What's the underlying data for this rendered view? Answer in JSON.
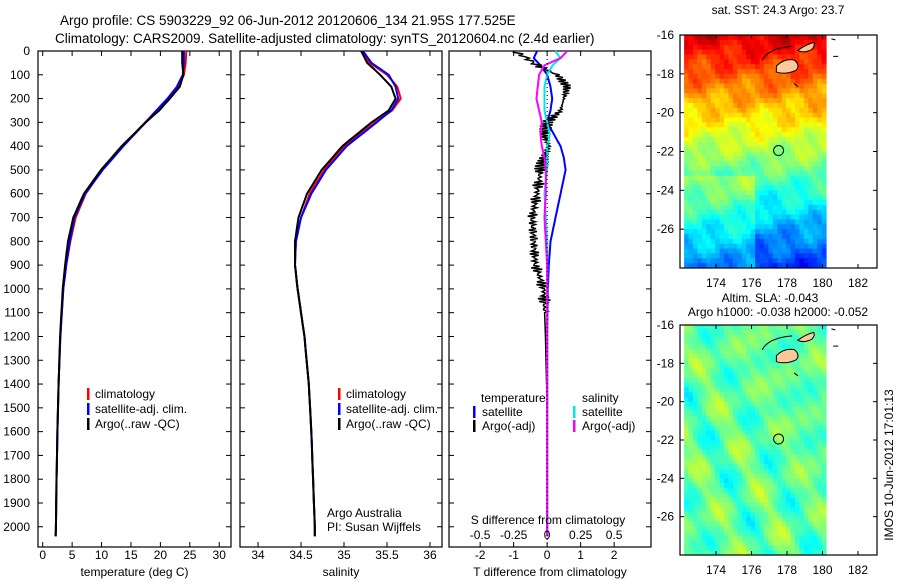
{
  "header": {
    "title_line1": "Argo profile: CS 5903229_92 06-Jun-2012 20120606_134 21.95S 177.525E",
    "title_line2": "Climatology: CARS2009. Satellite-adjusted climatology: synTS_20120604.nc (2.4d earlier)"
  },
  "side_label": "IMOS 10-Jun-2012 17:01:13",
  "colors": {
    "climatology": "#ff0000",
    "satellite": "#0000ff",
    "argo": "#000000",
    "sal_satellite": "#00e5ee",
    "sal_argo": "#ff00ff"
  },
  "chart_data": [
    {
      "type": "line",
      "name": "temperature",
      "xlabel": "temperature (deg C)",
      "xlim": [
        -0.8,
        32
      ],
      "ylim": [
        0,
        2085
      ],
      "xticks": [
        0,
        5,
        10,
        15,
        20,
        25,
        30
      ],
      "yticks": [
        0,
        100,
        200,
        300,
        400,
        500,
        600,
        700,
        800,
        900,
        1000,
        1100,
        1200,
        1300,
        1400,
        1500,
        1600,
        1700,
        1800,
        1900,
        2000
      ],
      "legend": [
        "climatology",
        "satellite-adj. clim.",
        "Argo(..raw -QC)"
      ],
      "depth": [
        0,
        50,
        100,
        150,
        200,
        250,
        300,
        400,
        500,
        600,
        700,
        800,
        900,
        1000,
        1200,
        1400,
        1600,
        1800,
        2000,
        2040
      ],
      "series": [
        {
          "name": "climatology",
          "values": [
            24.4,
            24.3,
            24.0,
            23.0,
            21.4,
            19.4,
            17.4,
            13.6,
            10.1,
            7.3,
            5.6,
            4.7,
            4.0,
            3.5,
            3.0,
            2.7,
            2.5,
            2.35,
            2.25,
            2.2
          ]
        },
        {
          "name": "satellite-adj. clim.",
          "values": [
            24.0,
            24.0,
            23.8,
            22.8,
            21.2,
            19.3,
            17.5,
            13.7,
            10.2,
            7.2,
            5.4,
            4.6,
            4.0,
            3.5,
            3.0,
            2.7,
            2.5,
            2.35,
            2.25,
            2.2
          ]
        },
        {
          "name": "Argo(..raw -QC)",
          "values": [
            23.7,
            23.7,
            23.9,
            23.3,
            21.6,
            19.8,
            17.5,
            13.4,
            9.9,
            7.0,
            5.2,
            4.3,
            3.8,
            3.4,
            2.95,
            2.7,
            2.5,
            2.35,
            2.25,
            2.2
          ]
        }
      ]
    },
    {
      "type": "line",
      "name": "salinity",
      "xlabel": "salinity",
      "xlim": [
        33.79,
        36.14
      ],
      "ylim": [
        0,
        2085
      ],
      "xticks": [
        34,
        34.5,
        35,
        35.5,
        36
      ],
      "legend": [
        "climatology",
        "satellite-adj. clim.",
        "Argo(..raw -QC)"
      ],
      "annotation": [
        "Argo Australia",
        "PI: Susan Wijffels"
      ],
      "depth": [
        0,
        50,
        100,
        150,
        200,
        250,
        300,
        400,
        500,
        600,
        700,
        800,
        900,
        1000,
        1100,
        1200,
        1400,
        1600,
        1800,
        2000,
        2040
      ],
      "series": [
        {
          "name": "climatology",
          "values": [
            35.2,
            35.3,
            35.5,
            35.62,
            35.66,
            35.56,
            35.36,
            35.0,
            34.77,
            34.6,
            34.5,
            34.44,
            34.43,
            34.46,
            34.5,
            34.54,
            34.59,
            34.62,
            34.64,
            34.66,
            34.66
          ]
        },
        {
          "name": "satellite-adj. clim.",
          "values": [
            35.22,
            35.32,
            35.52,
            35.6,
            35.63,
            35.55,
            35.38,
            35.03,
            34.79,
            34.62,
            34.5,
            34.44,
            34.43,
            34.46,
            34.5,
            34.54,
            34.59,
            34.62,
            34.64,
            34.66,
            34.66
          ]
        },
        {
          "name": "Argo(..raw -QC)",
          "values": [
            35.2,
            35.27,
            35.42,
            35.55,
            35.6,
            35.52,
            35.32,
            34.98,
            34.74,
            34.57,
            34.47,
            34.43,
            34.43,
            34.46,
            34.5,
            34.54,
            34.59,
            34.62,
            34.64,
            34.66,
            34.66
          ]
        }
      ]
    },
    {
      "type": "line",
      "name": "differences",
      "xlabel": "T difference from climatology",
      "xlabel2": "S difference from climatology",
      "xlim": [
        -2.93,
        3.1
      ],
      "ylim": [
        0,
        2085
      ],
      "xticks": [
        -2,
        -1,
        0,
        1,
        2
      ],
      "xticks_S": [
        "-0.5",
        "-0.25",
        "0",
        "0.25",
        "0.5"
      ],
      "xticks_S_values": [
        -0.5,
        -0.25,
        0,
        0.25,
        0.5
      ],
      "legend_temperature": {
        "heading": "temperature",
        "items": [
          "satellite",
          "Argo(-adj)"
        ]
      },
      "legend_salinity": {
        "heading": "salinity",
        "items": [
          "satellite",
          "Argo(-adj)"
        ]
      },
      "depth": [
        0,
        30,
        60,
        100,
        150,
        200,
        250,
        300,
        350,
        400,
        450,
        500,
        600,
        700,
        800,
        900,
        1000,
        1200,
        1500,
        2000,
        2040
      ],
      "series": [
        {
          "name": "T satellite",
          "values": [
            -0.3,
            -0.4,
            -0.2,
            0.0,
            0.1,
            0.15,
            0.1,
            0.0,
            0.2,
            0.4,
            0.5,
            0.55,
            0.4,
            0.25,
            0.1,
            0.05,
            0.02,
            0.0,
            0.0,
            0.0,
            0.0
          ]
        },
        {
          "name": "T Argo(-adj)",
          "values": [
            -1.0,
            -0.6,
            -0.3,
            0.3,
            0.6,
            0.5,
            0.4,
            0.0,
            -0.1,
            0.05,
            -0.1,
            -0.2,
            -0.3,
            -0.45,
            -0.4,
            -0.35,
            -0.1,
            -0.05,
            0.0,
            0.0,
            0.0
          ]
        },
        {
          "name": "S satellite",
          "values": [
            0.06,
            0.1,
            0.04,
            0.0,
            -0.02,
            -0.02,
            -0.02,
            0.0,
            0.02,
            0.0,
            0.0,
            0.0,
            -0.02,
            -0.01,
            0.0,
            0.0,
            0.0,
            0.0,
            0.0,
            0.0,
            0.0
          ]
        },
        {
          "name": "S Argo(-adj)",
          "values": [
            0.15,
            0.1,
            -0.02,
            -0.06,
            -0.07,
            -0.08,
            -0.06,
            -0.04,
            -0.05,
            -0.04,
            -0.02,
            -0.01,
            -0.01,
            -0.02,
            -0.01,
            0.0,
            0.0,
            0.0,
            0.0,
            0.0,
            0.0
          ]
        }
      ]
    },
    {
      "type": "heatmap",
      "name": "sst-map",
      "title": "sat. SST: 24.3 Argo: 23.7",
      "xlim": [
        171.97,
        183.07
      ],
      "ylim": [
        -28.0,
        -16.0
      ],
      "xticks": [
        174,
        176,
        178,
        180,
        182
      ],
      "yticks": [
        -16,
        -18,
        -20,
        -22,
        -24,
        -26
      ],
      "data_extent": {
        "lon": [
          172.2,
          180.2
        ],
        "lat": [
          -27.8,
          -16.0
        ]
      },
      "argo_position": {
        "lon": 177.525,
        "lat": -21.95
      }
    },
    {
      "type": "heatmap",
      "name": "sla-map",
      "title_line1": "Altim. SLA: -0.043",
      "title_line2": "Argo h1000: -0.038 h2000: -0.052",
      "xlim": [
        171.97,
        183.07
      ],
      "ylim": [
        -28.0,
        -16.0
      ],
      "xticks": [
        174,
        176,
        178,
        180,
        182
      ],
      "yticks": [
        -16,
        -18,
        -20,
        -22,
        -24,
        -26
      ],
      "data_extent": {
        "lon": [
          172.2,
          180.2
        ],
        "lat": [
          -27.8,
          -16.0
        ]
      },
      "argo_position": {
        "lon": 177.525,
        "lat": -21.95
      }
    }
  ]
}
